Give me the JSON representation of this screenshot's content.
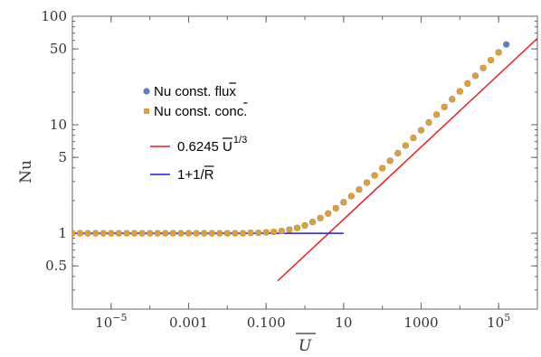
{
  "chart_data": {
    "type": "scatter",
    "title": "",
    "xlabel": "U",
    "ylabel": "Nu",
    "xscale": "log",
    "yscale": "log",
    "xlim": [
      1e-06,
      1000000
    ],
    "ylim": [
      0.2,
      100
    ],
    "x_ticks": [
      {
        "value": 1e-05,
        "base": "10",
        "exp": "−5"
      },
      {
        "value": 0.001,
        "text": "0.001"
      },
      {
        "value": 0.1,
        "text": "0.100"
      },
      {
        "value": 10,
        "text": "10"
      },
      {
        "value": 1000,
        "text": "1000"
      },
      {
        "value": 100000,
        "base": "10",
        "exp": "5"
      }
    ],
    "y_ticks": [
      {
        "value": 0.5,
        "text": "0.5"
      },
      {
        "value": 1,
        "text": "1"
      },
      {
        "value": 5,
        "text": "5"
      },
      {
        "value": 10,
        "text": "10"
      },
      {
        "value": 50,
        "text": "50"
      },
      {
        "value": 100,
        "text": "100"
      }
    ],
    "legend": {
      "position": "center-left",
      "items": [
        {
          "label": "Nu const. flux",
          "color": "#5b7fbf",
          "marker": "circle"
        },
        {
          "label": "Nu const. conc.",
          "color": "#e0a030",
          "marker": "square"
        },
        {
          "label": "0.6245 U",
          "superscript": "1/3",
          "color": "#ee1c1c",
          "marker": "line"
        },
        {
          "label": "1+1/R",
          "color": "#1c1cee",
          "marker": "line"
        }
      ]
    },
    "series": [
      {
        "name": "Nu const. flux",
        "marker": "circle",
        "color": "#5b7fbf",
        "x": [
          1e-06,
          1.58e-06,
          2.51e-06,
          3.98e-06,
          6.31e-06,
          1e-05,
          1.58e-05,
          2.51e-05,
          3.98e-05,
          6.31e-05,
          0.0001,
          0.000158,
          0.000251,
          0.000398,
          0.000631,
          0.001,
          0.00158,
          0.00251,
          0.00398,
          0.00631,
          0.01,
          0.0158,
          0.0251,
          0.0398,
          0.0631,
          0.1,
          0.158,
          0.251,
          0.398,
          0.631,
          1,
          1.58,
          2.51,
          3.98,
          6.31,
          10,
          15.8,
          25.1,
          39.8,
          63.1,
          100,
          158,
          251,
          398,
          631,
          1000,
          1580,
          2510,
          3980,
          6310,
          10000,
          15800,
          25100,
          39800,
          63100,
          100000,
          158000
        ],
        "y": [
          1,
          1,
          1,
          1,
          1,
          1,
          1,
          1,
          1,
          1,
          1,
          1,
          1,
          1,
          1,
          1,
          1,
          1,
          1,
          1,
          1,
          1,
          1,
          1.01,
          1.01,
          1.02,
          1.03,
          1.05,
          1.08,
          1.12,
          1.18,
          1.27,
          1.38,
          1.52,
          1.7,
          1.93,
          2.2,
          2.53,
          2.93,
          3.41,
          3.98,
          4.66,
          5.47,
          6.43,
          7.57,
          8.91,
          10.5,
          12.4,
          14.6,
          17.2,
          20.3,
          24,
          28.3,
          33.4,
          39.4,
          46.5,
          55
        ]
      },
      {
        "name": "Nu const. conc.",
        "marker": "square",
        "color": "#e0a030",
        "x": [
          1e-06,
          1.58e-06,
          2.51e-06,
          3.98e-06,
          6.31e-06,
          1e-05,
          1.58e-05,
          2.51e-05,
          3.98e-05,
          6.31e-05,
          0.0001,
          0.000158,
          0.000251,
          0.000398,
          0.000631,
          0.001,
          0.00158,
          0.00251,
          0.00398,
          0.00631,
          0.01,
          0.0158,
          0.0251,
          0.0398,
          0.0631,
          0.1,
          0.158,
          0.251,
          0.398,
          0.631,
          1,
          1.58,
          2.51,
          3.98,
          6.31,
          10,
          15.8,
          25.1,
          39.8,
          63.1,
          100,
          158,
          251,
          398,
          631,
          1000,
          1580,
          2510,
          3980,
          6310,
          10000,
          15800,
          25100,
          39800,
          63100,
          100000
        ],
        "y": [
          1,
          1,
          1,
          1,
          1,
          1,
          1,
          1,
          1,
          1,
          1,
          1,
          1,
          1,
          1,
          1,
          1,
          1,
          1,
          1,
          1,
          1,
          1,
          1.01,
          1.01,
          1.02,
          1.03,
          1.05,
          1.08,
          1.12,
          1.18,
          1.27,
          1.38,
          1.52,
          1.7,
          1.93,
          2.2,
          2.53,
          2.93,
          3.41,
          3.98,
          4.66,
          5.47,
          6.43,
          7.57,
          8.91,
          10.5,
          12.4,
          14.6,
          17.2,
          20.3,
          24,
          28.3,
          33.4,
          39.4,
          46.5
        ]
      },
      {
        "name": "0.6245 U 1/3",
        "type": "line",
        "color": "#ee1c1c",
        "x": [
          0.2,
          2000000
        ],
        "y": [
          0.365,
          78.7
        ]
      },
      {
        "name": "1+1/R",
        "type": "line",
        "color": "#1c1cee",
        "x": [
          1e-06,
          10
        ],
        "y": [
          1,
          1
        ]
      }
    ]
  }
}
